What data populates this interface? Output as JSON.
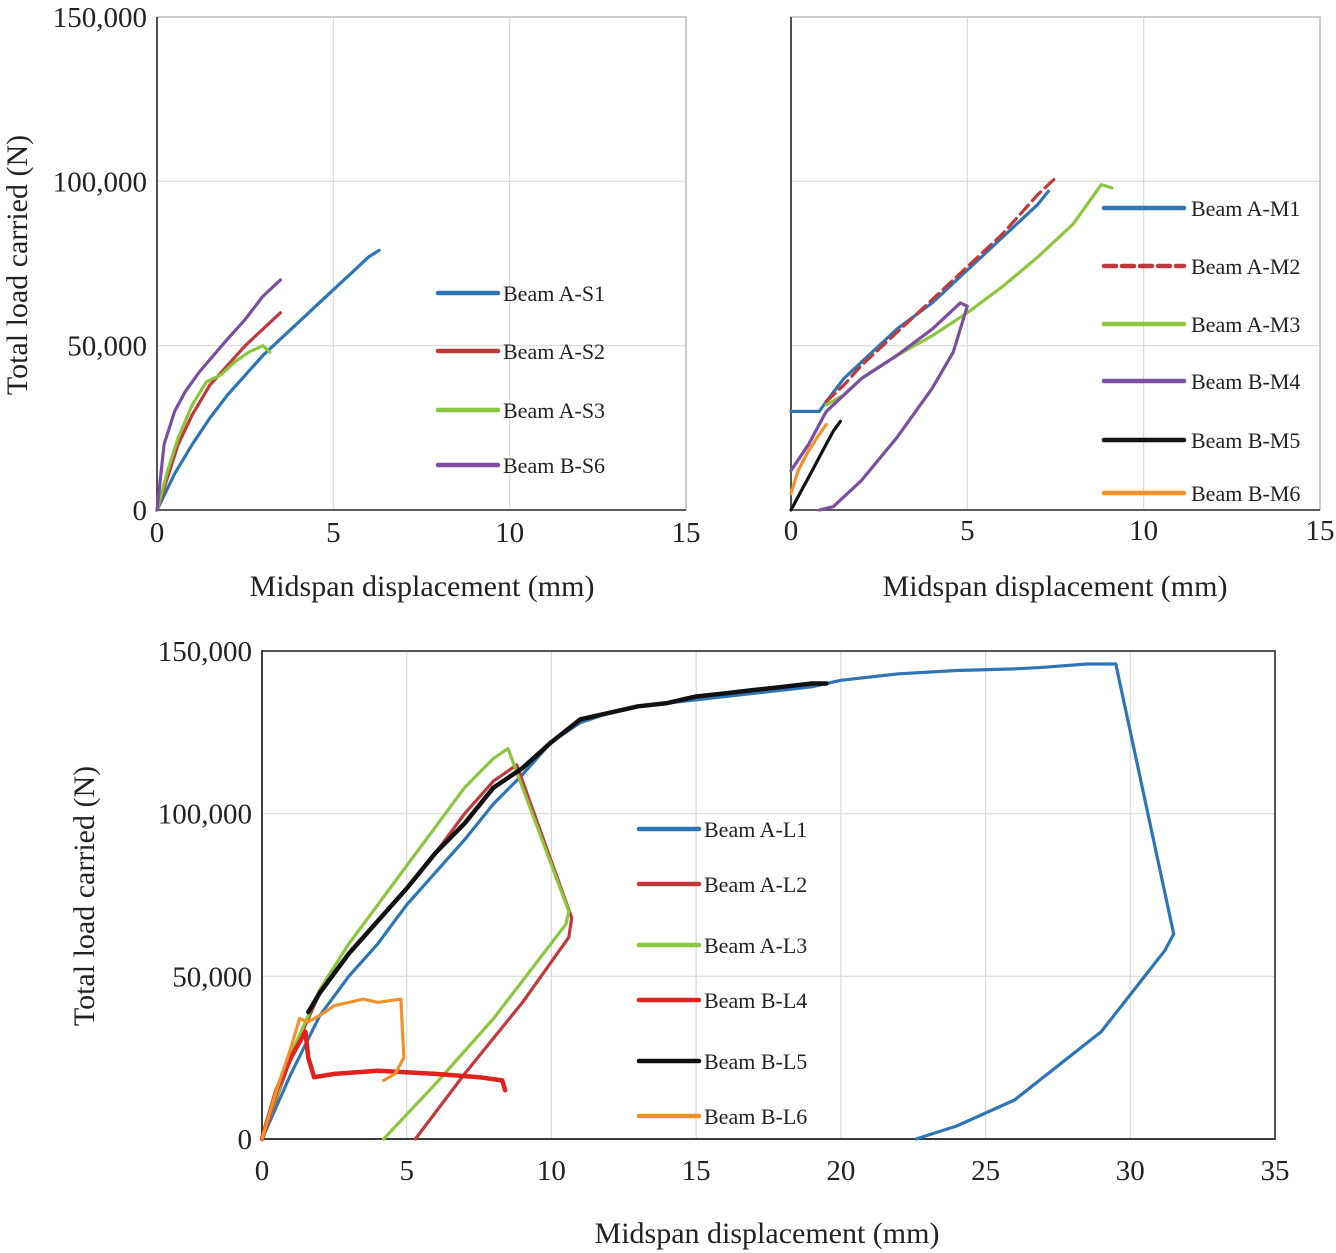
{
  "chart_data": [
    {
      "id": "panel-small",
      "type": "line",
      "xlabel": "Midspan displacement (mm)",
      "ylabel": "Total load carried (N)",
      "xlim": [
        0,
        15
      ],
      "ylim": [
        0,
        150000
      ],
      "xticks": [
        0,
        5,
        10,
        15
      ],
      "yticks": [
        0,
        50000,
        100000,
        150000
      ],
      "xtick_labels": [
        "0",
        "5",
        "10",
        "15"
      ],
      "ytick_labels": [
        "0",
        "50,000",
        "100,000",
        "150,000"
      ],
      "grid": true,
      "legend_position": "right",
      "series": [
        {
          "name": "Beam A-S1",
          "color": "#2e75b6",
          "dash": false,
          "x": [
            0,
            0.5,
            1,
            1.5,
            2,
            2.5,
            3,
            3.5,
            4,
            4.5,
            5,
            5.5,
            6,
            6.3
          ],
          "y": [
            0,
            11000,
            20000,
            28000,
            35000,
            41000,
            47000,
            52000,
            57000,
            62000,
            67000,
            72000,
            77000,
            79000
          ]
        },
        {
          "name": "Beam A-S2",
          "color": "#c0393b",
          "dash": false,
          "x": [
            0,
            0.3,
            0.6,
            1,
            1.5,
            2,
            2.5,
            3,
            3.5
          ],
          "y": [
            0,
            10000,
            20000,
            29000,
            38000,
            44000,
            50000,
            55000,
            60000
          ]
        },
        {
          "name": "Beam A-S3",
          "color": "#8cc63f",
          "dash": false,
          "x": [
            0,
            0.3,
            0.6,
            1,
            1.4,
            1.8,
            2.2,
            2.6,
            3.0,
            3.2
          ],
          "y": [
            0,
            12000,
            22000,
            32000,
            39000,
            41000,
            45000,
            48000,
            50000,
            48000
          ]
        },
        {
          "name": "Beam B-S6",
          "color": "#7b4fa0",
          "dash": false,
          "x": [
            0,
            0.2,
            0.5,
            0.8,
            1.2,
            1.6,
            2,
            2.5,
            3,
            3.5
          ],
          "y": [
            0,
            20000,
            30000,
            36000,
            42000,
            47000,
            52000,
            58000,
            65000,
            70000
          ]
        }
      ]
    },
    {
      "id": "panel-medium",
      "type": "line",
      "xlabel": "Midspan displacement (mm)",
      "ylabel": "",
      "xlim": [
        0,
        15
      ],
      "ylim": [
        0,
        150000
      ],
      "xticks": [
        0,
        5,
        10,
        15
      ],
      "yticks": [
        0,
        50000,
        100000,
        150000
      ],
      "xtick_labels": [
        "0",
        "5",
        "10",
        "15"
      ],
      "ytick_labels": [],
      "grid": true,
      "legend_position": "right",
      "series": [
        {
          "name": "Beam A-M1",
          "color": "#2e75b6",
          "dash": false,
          "x": [
            0,
            0.8,
            1.0,
            1.5,
            2,
            3,
            4,
            5,
            6,
            7,
            7.3
          ],
          "y": [
            30000,
            30000,
            33000,
            40000,
            45000,
            55000,
            63000,
            73000,
            83000,
            93000,
            97000
          ]
        },
        {
          "name": "Beam A-M2",
          "color": "#c0393b",
          "dash": true,
          "x": [
            1.0,
            1.5,
            2,
            3,
            4,
            5,
            6,
            7,
            7.5
          ],
          "y": [
            33000,
            38000,
            44000,
            54000,
            64000,
            74000,
            84000,
            96000,
            101000
          ]
        },
        {
          "name": "Beam A-M3",
          "color": "#8cc63f",
          "dash": false,
          "x": [
            1.0,
            1.5,
            2,
            3,
            4,
            5,
            6,
            7,
            8,
            8.8,
            9.1
          ],
          "y": [
            32000,
            35000,
            40000,
            47000,
            53000,
            60000,
            68000,
            77000,
            87000,
            99000,
            98000
          ]
        },
        {
          "name": "Beam B-M4",
          "color": "#7b4fa0",
          "dash": false,
          "x": [
            0,
            0.5,
            1.0,
            2,
            3,
            4,
            4.8,
            5.0,
            4.6,
            4,
            3,
            2,
            1.2,
            0.8
          ],
          "y": [
            12000,
            20000,
            30000,
            40000,
            47000,
            55000,
            63000,
            62000,
            48000,
            37000,
            22000,
            9000,
            1000,
            0
          ]
        },
        {
          "name": "Beam B-M5",
          "color": "#111111",
          "dash": false,
          "x": [
            0,
            0.3,
            0.6,
            0.9,
            1.2,
            1.4
          ],
          "y": [
            0,
            6000,
            12000,
            18000,
            24000,
            27000
          ]
        },
        {
          "name": "Beam B-M6",
          "color": "#f0922b",
          "dash": false,
          "x": [
            0,
            0.2,
            0.5,
            0.8,
            1.0
          ],
          "y": [
            5000,
            12000,
            18000,
            23000,
            26000
          ]
        }
      ]
    },
    {
      "id": "panel-large",
      "type": "line",
      "xlabel": "Midspan displacement (mm)",
      "ylabel": "Total load carried (N)",
      "xlim": [
        0,
        35
      ],
      "ylim": [
        0,
        150000
      ],
      "xticks": [
        0,
        5,
        10,
        15,
        20,
        25,
        30,
        35
      ],
      "yticks": [
        0,
        50000,
        100000,
        150000
      ],
      "xtick_labels": [
        "0",
        "5",
        "10",
        "15",
        "20",
        "25",
        "30",
        "35"
      ],
      "ytick_labels": [
        "0",
        "50,000",
        "100,000",
        "150,000"
      ],
      "grid": true,
      "legend_position": "center",
      "series": [
        {
          "name": "Beam A-L1",
          "color": "#2e75b6",
          "dash": false,
          "x": [
            0,
            1,
            2,
            3,
            4,
            5,
            6,
            7,
            8,
            9,
            10,
            11,
            12,
            13,
            15,
            17,
            19,
            20,
            22,
            24,
            26,
            27,
            28.5,
            29.5,
            31.5,
            31.2,
            29,
            26,
            24,
            22.6
          ],
          "y": [
            0,
            20000,
            38000,
            50000,
            60000,
            72000,
            82000,
            92000,
            103000,
            112000,
            122000,
            128000,
            131000,
            133000,
            135000,
            137000,
            139000,
            141000,
            143000,
            144000,
            144500,
            145000,
            146000,
            146000,
            63000,
            58000,
            33000,
            12000,
            4000,
            0
          ]
        },
        {
          "name": "Beam A-L2",
          "color": "#c0393b",
          "dash": false,
          "x": [
            0,
            1,
            2,
            3,
            4,
            5,
            6,
            7,
            8,
            8.8,
            10.7,
            10.6,
            9,
            7,
            5.3
          ],
          "y": [
            0,
            25000,
            45000,
            57000,
            67000,
            77000,
            88000,
            100000,
            110000,
            115000,
            68000,
            62000,
            42000,
            20000,
            0
          ]
        },
        {
          "name": "Beam A-L3",
          "color": "#8cc63f",
          "dash": false,
          "x": [
            0,
            1,
            2,
            3,
            4,
            5,
            6,
            7,
            8,
            8.5,
            10.6,
            10.5,
            8,
            6,
            4.2
          ],
          "y": [
            0,
            26000,
            46000,
            60000,
            72000,
            84000,
            96000,
            108000,
            117000,
            120000,
            70000,
            66000,
            37000,
            17000,
            0
          ]
        },
        {
          "name": "Beam B-L4",
          "color": "#e0211d",
          "dash": false,
          "x": [
            0,
            0.5,
            1.0,
            1.5,
            1.6,
            1.8,
            2.5,
            4,
            6,
            7.5,
            8.3,
            8.4
          ],
          "y": [
            0,
            15000,
            25000,
            33000,
            25000,
            19000,
            20000,
            21000,
            20000,
            19000,
            18000,
            15000
          ]
        },
        {
          "name": "Beam B-L5",
          "color": "#111111",
          "dash": false,
          "x": [
            1.6,
            2,
            3,
            4,
            5,
            6,
            7,
            8,
            9,
            10,
            11,
            12,
            13,
            14,
            15,
            16,
            17,
            18,
            19,
            19.5
          ],
          "y": [
            39000,
            45000,
            57000,
            67000,
            77000,
            88000,
            97000,
            108000,
            114000,
            122000,
            129000,
            131000,
            133000,
            134000,
            136000,
            137000,
            138000,
            139000,
            140000,
            140000
          ]
        },
        {
          "name": "Beam B-L6",
          "color": "#f0922b",
          "dash": false,
          "x": [
            0,
            0.5,
            1.0,
            1.3,
            1.6,
            2,
            2.5,
            3,
            3.5,
            4,
            4.8,
            4.9,
            4.6,
            4.2
          ],
          "y": [
            0,
            15000,
            28000,
            37000,
            36000,
            38000,
            41000,
            42000,
            43000,
            42000,
            43000,
            25000,
            20000,
            18000
          ]
        }
      ]
    }
  ]
}
